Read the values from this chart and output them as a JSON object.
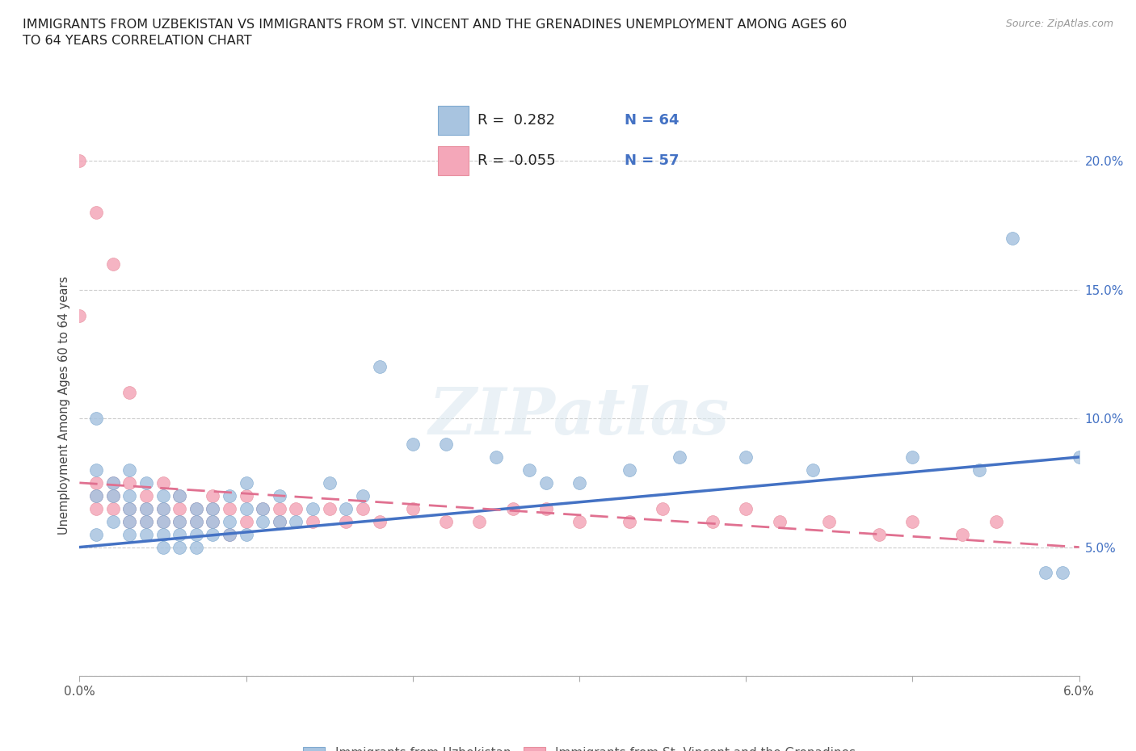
{
  "title": "IMMIGRANTS FROM UZBEKISTAN VS IMMIGRANTS FROM ST. VINCENT AND THE GRENADINES UNEMPLOYMENT AMONG AGES 60\nTO 64 YEARS CORRELATION CHART",
  "source_text": "Source: ZipAtlas.com",
  "ylabel": "Unemployment Among Ages 60 to 64 years",
  "xlim": [
    0.0,
    0.06
  ],
  "ylim": [
    0.0,
    0.21
  ],
  "xticks": [
    0.0,
    0.01,
    0.02,
    0.03,
    0.04,
    0.05,
    0.06
  ],
  "xticklabels": [
    "0.0%",
    "",
    "",
    "",
    "",
    "",
    "6.0%"
  ],
  "yticks_right": [
    0.0,
    0.05,
    0.1,
    0.15,
    0.2
  ],
  "yticklabels_right": [
    "",
    "5.0%",
    "10.0%",
    "15.0%",
    "20.0%"
  ],
  "color_uzbekistan": "#a8c4e0",
  "color_stvincent": "#f4a7b9",
  "line_color_uzbekistan": "#4472c4",
  "line_color_stvincent": "#e07090",
  "watermark": "ZIPatlas",
  "legend_label1": "Immigrants from Uzbekistan",
  "legend_label2": "Immigrants from St. Vincent and the Grenadines",
  "uzbekistan_x": [
    0.001,
    0.001,
    0.001,
    0.001,
    0.002,
    0.002,
    0.002,
    0.003,
    0.003,
    0.003,
    0.003,
    0.003,
    0.004,
    0.004,
    0.004,
    0.004,
    0.005,
    0.005,
    0.005,
    0.005,
    0.005,
    0.006,
    0.006,
    0.006,
    0.006,
    0.007,
    0.007,
    0.007,
    0.007,
    0.008,
    0.008,
    0.008,
    0.009,
    0.009,
    0.009,
    0.01,
    0.01,
    0.01,
    0.011,
    0.011,
    0.012,
    0.012,
    0.013,
    0.014,
    0.015,
    0.016,
    0.017,
    0.018,
    0.02,
    0.022,
    0.025,
    0.027,
    0.028,
    0.03,
    0.033,
    0.036,
    0.04,
    0.044,
    0.05,
    0.054,
    0.056,
    0.058,
    0.059,
    0.06
  ],
  "uzbekistan_y": [
    0.055,
    0.07,
    0.08,
    0.1,
    0.06,
    0.07,
    0.075,
    0.055,
    0.06,
    0.065,
    0.07,
    0.08,
    0.055,
    0.06,
    0.065,
    0.075,
    0.05,
    0.055,
    0.06,
    0.065,
    0.07,
    0.05,
    0.055,
    0.06,
    0.07,
    0.05,
    0.055,
    0.06,
    0.065,
    0.055,
    0.06,
    0.065,
    0.055,
    0.06,
    0.07,
    0.055,
    0.065,
    0.075,
    0.06,
    0.065,
    0.06,
    0.07,
    0.06,
    0.065,
    0.075,
    0.065,
    0.07,
    0.12,
    0.09,
    0.09,
    0.085,
    0.08,
    0.075,
    0.075,
    0.08,
    0.085,
    0.085,
    0.08,
    0.085,
    0.08,
    0.17,
    0.04,
    0.04,
    0.085
  ],
  "stvincent_x": [
    0.0,
    0.0,
    0.001,
    0.001,
    0.001,
    0.001,
    0.002,
    0.002,
    0.002,
    0.002,
    0.003,
    0.003,
    0.003,
    0.003,
    0.004,
    0.004,
    0.004,
    0.005,
    0.005,
    0.005,
    0.006,
    0.006,
    0.006,
    0.007,
    0.007,
    0.008,
    0.008,
    0.008,
    0.009,
    0.009,
    0.01,
    0.01,
    0.011,
    0.012,
    0.012,
    0.013,
    0.014,
    0.015,
    0.016,
    0.017,
    0.018,
    0.02,
    0.022,
    0.024,
    0.026,
    0.028,
    0.03,
    0.033,
    0.035,
    0.038,
    0.04,
    0.042,
    0.045,
    0.048,
    0.05,
    0.053,
    0.055
  ],
  "stvincent_y": [
    0.2,
    0.14,
    0.065,
    0.07,
    0.075,
    0.18,
    0.065,
    0.07,
    0.075,
    0.16,
    0.06,
    0.065,
    0.075,
    0.11,
    0.06,
    0.065,
    0.07,
    0.06,
    0.065,
    0.075,
    0.06,
    0.065,
    0.07,
    0.06,
    0.065,
    0.06,
    0.065,
    0.07,
    0.055,
    0.065,
    0.06,
    0.07,
    0.065,
    0.06,
    0.065,
    0.065,
    0.06,
    0.065,
    0.06,
    0.065,
    0.06,
    0.065,
    0.06,
    0.06,
    0.065,
    0.065,
    0.06,
    0.06,
    0.065,
    0.06,
    0.065,
    0.06,
    0.06,
    0.055,
    0.06,
    0.055,
    0.06
  ],
  "uz_trend_x0": 0.0,
  "uz_trend_y0": 0.05,
  "uz_trend_x1": 0.06,
  "uz_trend_y1": 0.085,
  "sv_trend_x0": 0.0,
  "sv_trend_y0": 0.075,
  "sv_trend_x1": 0.06,
  "sv_trend_y1": 0.05
}
